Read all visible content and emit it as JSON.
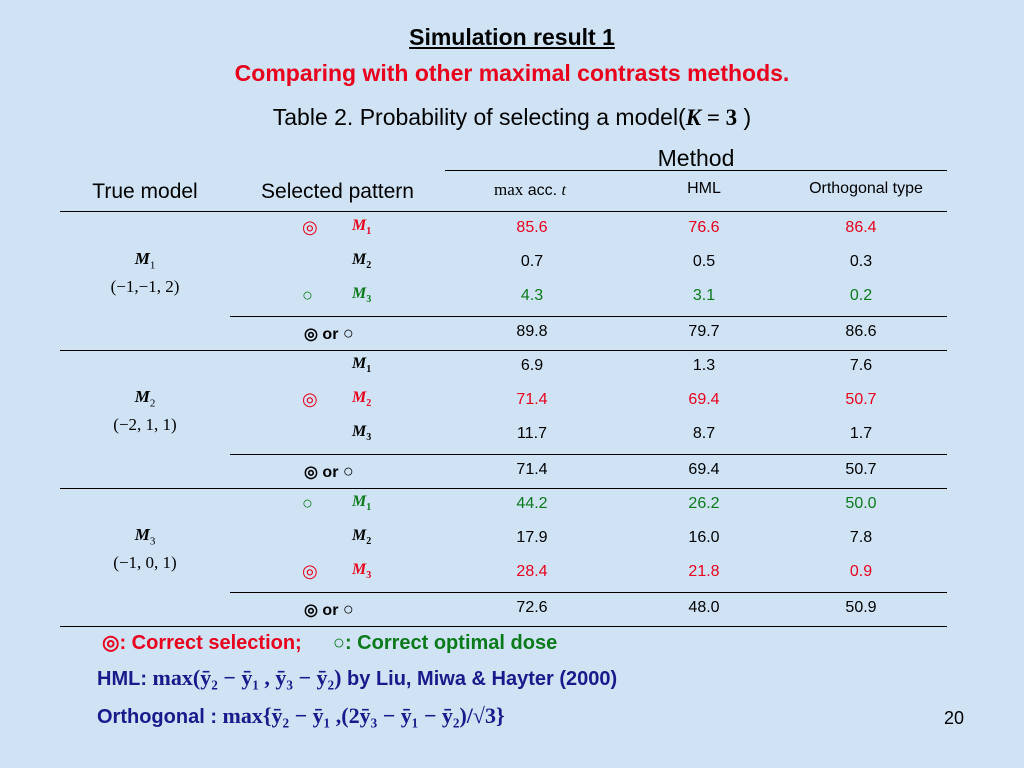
{
  "slide": {
    "title": "Simulation result 1",
    "subtitle": "Comparing with other maximal contrasts methods.",
    "caption_prefix": "Table 2.   Probability of selecting a model(",
    "caption_k": "K",
    "caption_eq": " = 3",
    "caption_suffix": " )",
    "page_number": "20"
  },
  "table": {
    "method_label": "Method",
    "col_true_model": "True model",
    "col_selected_pattern": "Selected pattern",
    "col_max_prefix": "max",
    "col_max_suffix": "acc.",
    "col_max_t": "t",
    "col_hml": "HML",
    "col_orth": "Orthogonal type",
    "groups": [
      {
        "true_model": "M",
        "true_model_sub": "1",
        "true_model_params": "(−1,−1, 2)",
        "rows": [
          {
            "symbol": "◎",
            "model": "M",
            "sub": "1",
            "color": "red",
            "max": "85.6",
            "hml": "76.6",
            "orth": "86.4"
          },
          {
            "symbol": "",
            "model": "M",
            "sub": "2",
            "color": "black",
            "max": "0.7",
            "hml": "0.5",
            "orth": "0.3"
          },
          {
            "symbol": "○",
            "model": "M",
            "sub": "3",
            "color": "green",
            "max": "4.3",
            "hml": "3.1",
            "orth": "0.2"
          }
        ],
        "total": {
          "label_a": "◎",
          "label_or": "or",
          "label_b": "○",
          "max": "89.8",
          "hml": "79.7",
          "orth": "86.6"
        }
      },
      {
        "true_model": "M",
        "true_model_sub": "2",
        "true_model_params": "(−2, 1, 1)",
        "rows": [
          {
            "symbol": "",
            "model": "M",
            "sub": "1",
            "color": "black",
            "max": "6.9",
            "hml": "1.3",
            "orth": "7.6"
          },
          {
            "symbol": "◎",
            "model": "M",
            "sub": "2",
            "color": "red",
            "max": "71.4",
            "hml": "69.4",
            "orth": "50.7"
          },
          {
            "symbol": "",
            "model": "M",
            "sub": "3",
            "color": "black",
            "max": "11.7",
            "hml": "8.7",
            "orth": "1.7"
          }
        ],
        "total": {
          "label_a": "◎",
          "label_or": "or",
          "label_b": "○",
          "max": "71.4",
          "hml": "69.4",
          "orth": "50.7"
        }
      },
      {
        "true_model": "M",
        "true_model_sub": "3",
        "true_model_params": "(−1, 0, 1)",
        "rows": [
          {
            "symbol": "○",
            "model": "M",
            "sub": "1",
            "color": "green",
            "max": "44.2",
            "hml": "26.2",
            "orth": "50.0"
          },
          {
            "symbol": "",
            "model": "M",
            "sub": "2",
            "color": "black",
            "max": "17.9",
            "hml": "16.0",
            "orth": "7.8"
          },
          {
            "symbol": "◎",
            "model": "M",
            "sub": "3",
            "color": "red",
            "max": "28.4",
            "hml": "21.8",
            "orth": "0.9"
          }
        ],
        "total": {
          "label_a": "◎",
          "label_or": "or",
          "label_b": "○",
          "max": "72.6",
          "hml": "48.0",
          "orth": "50.9"
        }
      }
    ]
  },
  "legend": {
    "correct_symbol": "◎",
    "correct_text": ":  Correct selection;",
    "optimal_symbol": "○",
    "optimal_text": ":  Correct optimal dose",
    "hml_label": "HML:",
    "hml_formula": "max(ȳ₂ − ȳ₁ , ȳ₃ − ȳ₂)",
    "hml_citation": "by Liu, Miwa & Hayter (2000)",
    "orth_label": "Orthogonal :",
    "orth_formula": "max{ȳ₂ − ȳ₁ ,(2ȳ₃ − ȳ₁ − ȳ₂)/√3}"
  },
  "colors": {
    "background": "#cfe3f5",
    "red": "#e8001c",
    "green": "#0a7a1a"
  }
}
